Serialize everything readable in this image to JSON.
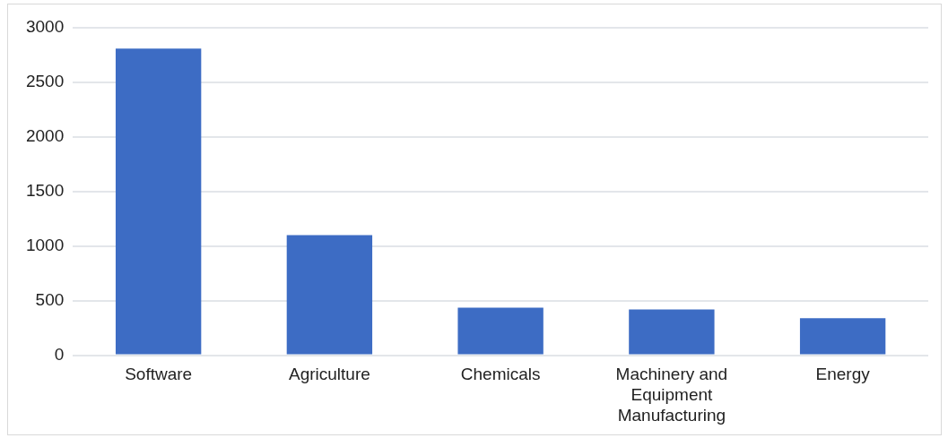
{
  "chart_data": {
    "type": "bar",
    "categories": [
      "Software",
      "Agriculture",
      "Chemicals",
      "Machinery and Equipment Manufacturing",
      "Energy"
    ],
    "values": [
      2810,
      1100,
      435,
      420,
      340
    ],
    "color": "#3d6cc4",
    "ylim": [
      0,
      3000
    ],
    "yticks": [
      0,
      500,
      1000,
      1500,
      2000,
      2500,
      3000
    ],
    "grid": "y",
    "legend": false
  }
}
